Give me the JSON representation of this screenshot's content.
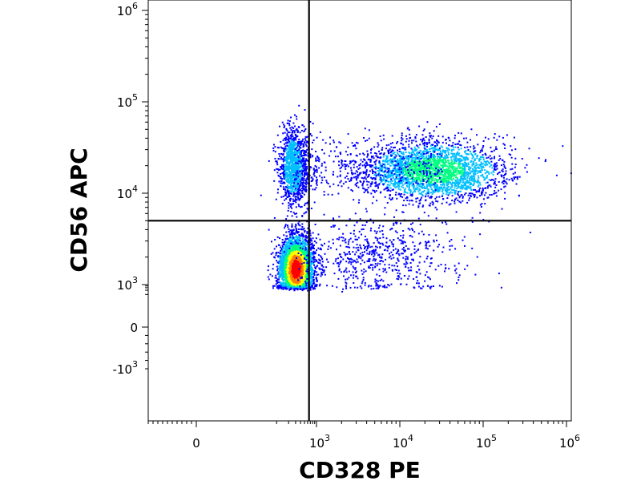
{
  "chart_data": {
    "type": "scatter",
    "subtype": "flow-cytometry-density-dot-plot",
    "title": "",
    "xlabel": "CD328 PE",
    "ylabel": "CD56 APC",
    "x_scale": "biexponential",
    "y_scale": "biexponential",
    "x_ticks": [
      {
        "value": 0,
        "base": "0",
        "exp": ""
      },
      {
        "value": 1000,
        "base": "10",
        "exp": "3"
      },
      {
        "value": 10000,
        "base": "10",
        "exp": "4"
      },
      {
        "value": 100000,
        "base": "10",
        "exp": "5"
      },
      {
        "value": 1000000,
        "base": "10",
        "exp": "6"
      }
    ],
    "y_ticks": [
      {
        "value": 1000000,
        "base": "10",
        "exp": "6"
      },
      {
        "value": 100000,
        "base": "10",
        "exp": "5"
      },
      {
        "value": 10000,
        "base": "10",
        "exp": "4"
      },
      {
        "value": 1000,
        "base": "10",
        "exp": "3"
      },
      {
        "value": 0,
        "base": "0",
        "exp": ""
      },
      {
        "value": -1000,
        "base": "-10",
        "exp": "3"
      }
    ],
    "gates": {
      "x_threshold": 650,
      "y_threshold": 5000
    },
    "color_scale": [
      "#0000ff",
      "#00bfff",
      "#00ff80",
      "#ffff00",
      "#ff8000",
      "#ff0000"
    ],
    "populations": [
      {
        "quadrant": "lower-left",
        "center_x": 300,
        "center_y": 1500,
        "density": "very high"
      },
      {
        "quadrant": "upper-left",
        "center_x": 250,
        "center_y": 20000,
        "density": "medium"
      },
      {
        "quadrant": "upper-right",
        "center_x": 25000,
        "center_y": 18000,
        "density": "high"
      },
      {
        "quadrant": "lower-right",
        "center_x": 5000,
        "center_y": 2000,
        "density": "low"
      }
    ],
    "grid": false,
    "legend": "none"
  }
}
